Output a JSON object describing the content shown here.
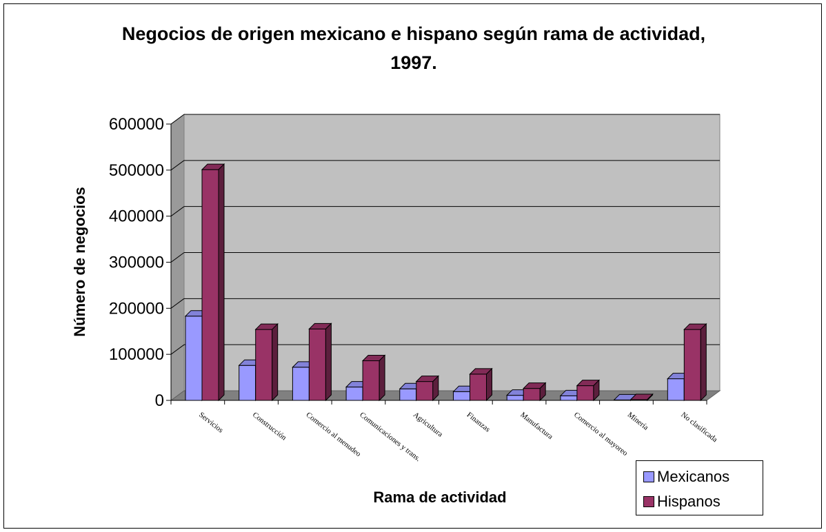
{
  "chart_data": {
    "type": "bar",
    "title": "Negocios de origen mexicano e hispano según rama de actividad, 1997.",
    "xlabel": "Rama de actividad",
    "ylabel": "Número de negocios",
    "ylim": [
      0,
      600000
    ],
    "yticks": [
      "0",
      "100000",
      "200000",
      "300000",
      "400000",
      "500000",
      "600000"
    ],
    "grid": true,
    "legend_position": "bottom-right",
    "categories": [
      "Servicios",
      "Construcción",
      "Comercio al menudeo",
      "Comunicaciones y trans.",
      "Agricultura",
      "Finanzas",
      "Manufactura",
      "Comercio al mayoreo",
      "Minería",
      "No clasificada"
    ],
    "series": [
      {
        "name": "Mexicanos",
        "color": "#9999ff",
        "values": [
          183000,
          76000,
          72000,
          29000,
          25000,
          19000,
          11000,
          10000,
          1000,
          47000
        ]
      },
      {
        "name": "Hispanos",
        "color": "#993366",
        "values": [
          501000,
          154000,
          155000,
          86000,
          41000,
          57000,
          26000,
          32000,
          1500,
          154000
        ]
      }
    ]
  }
}
